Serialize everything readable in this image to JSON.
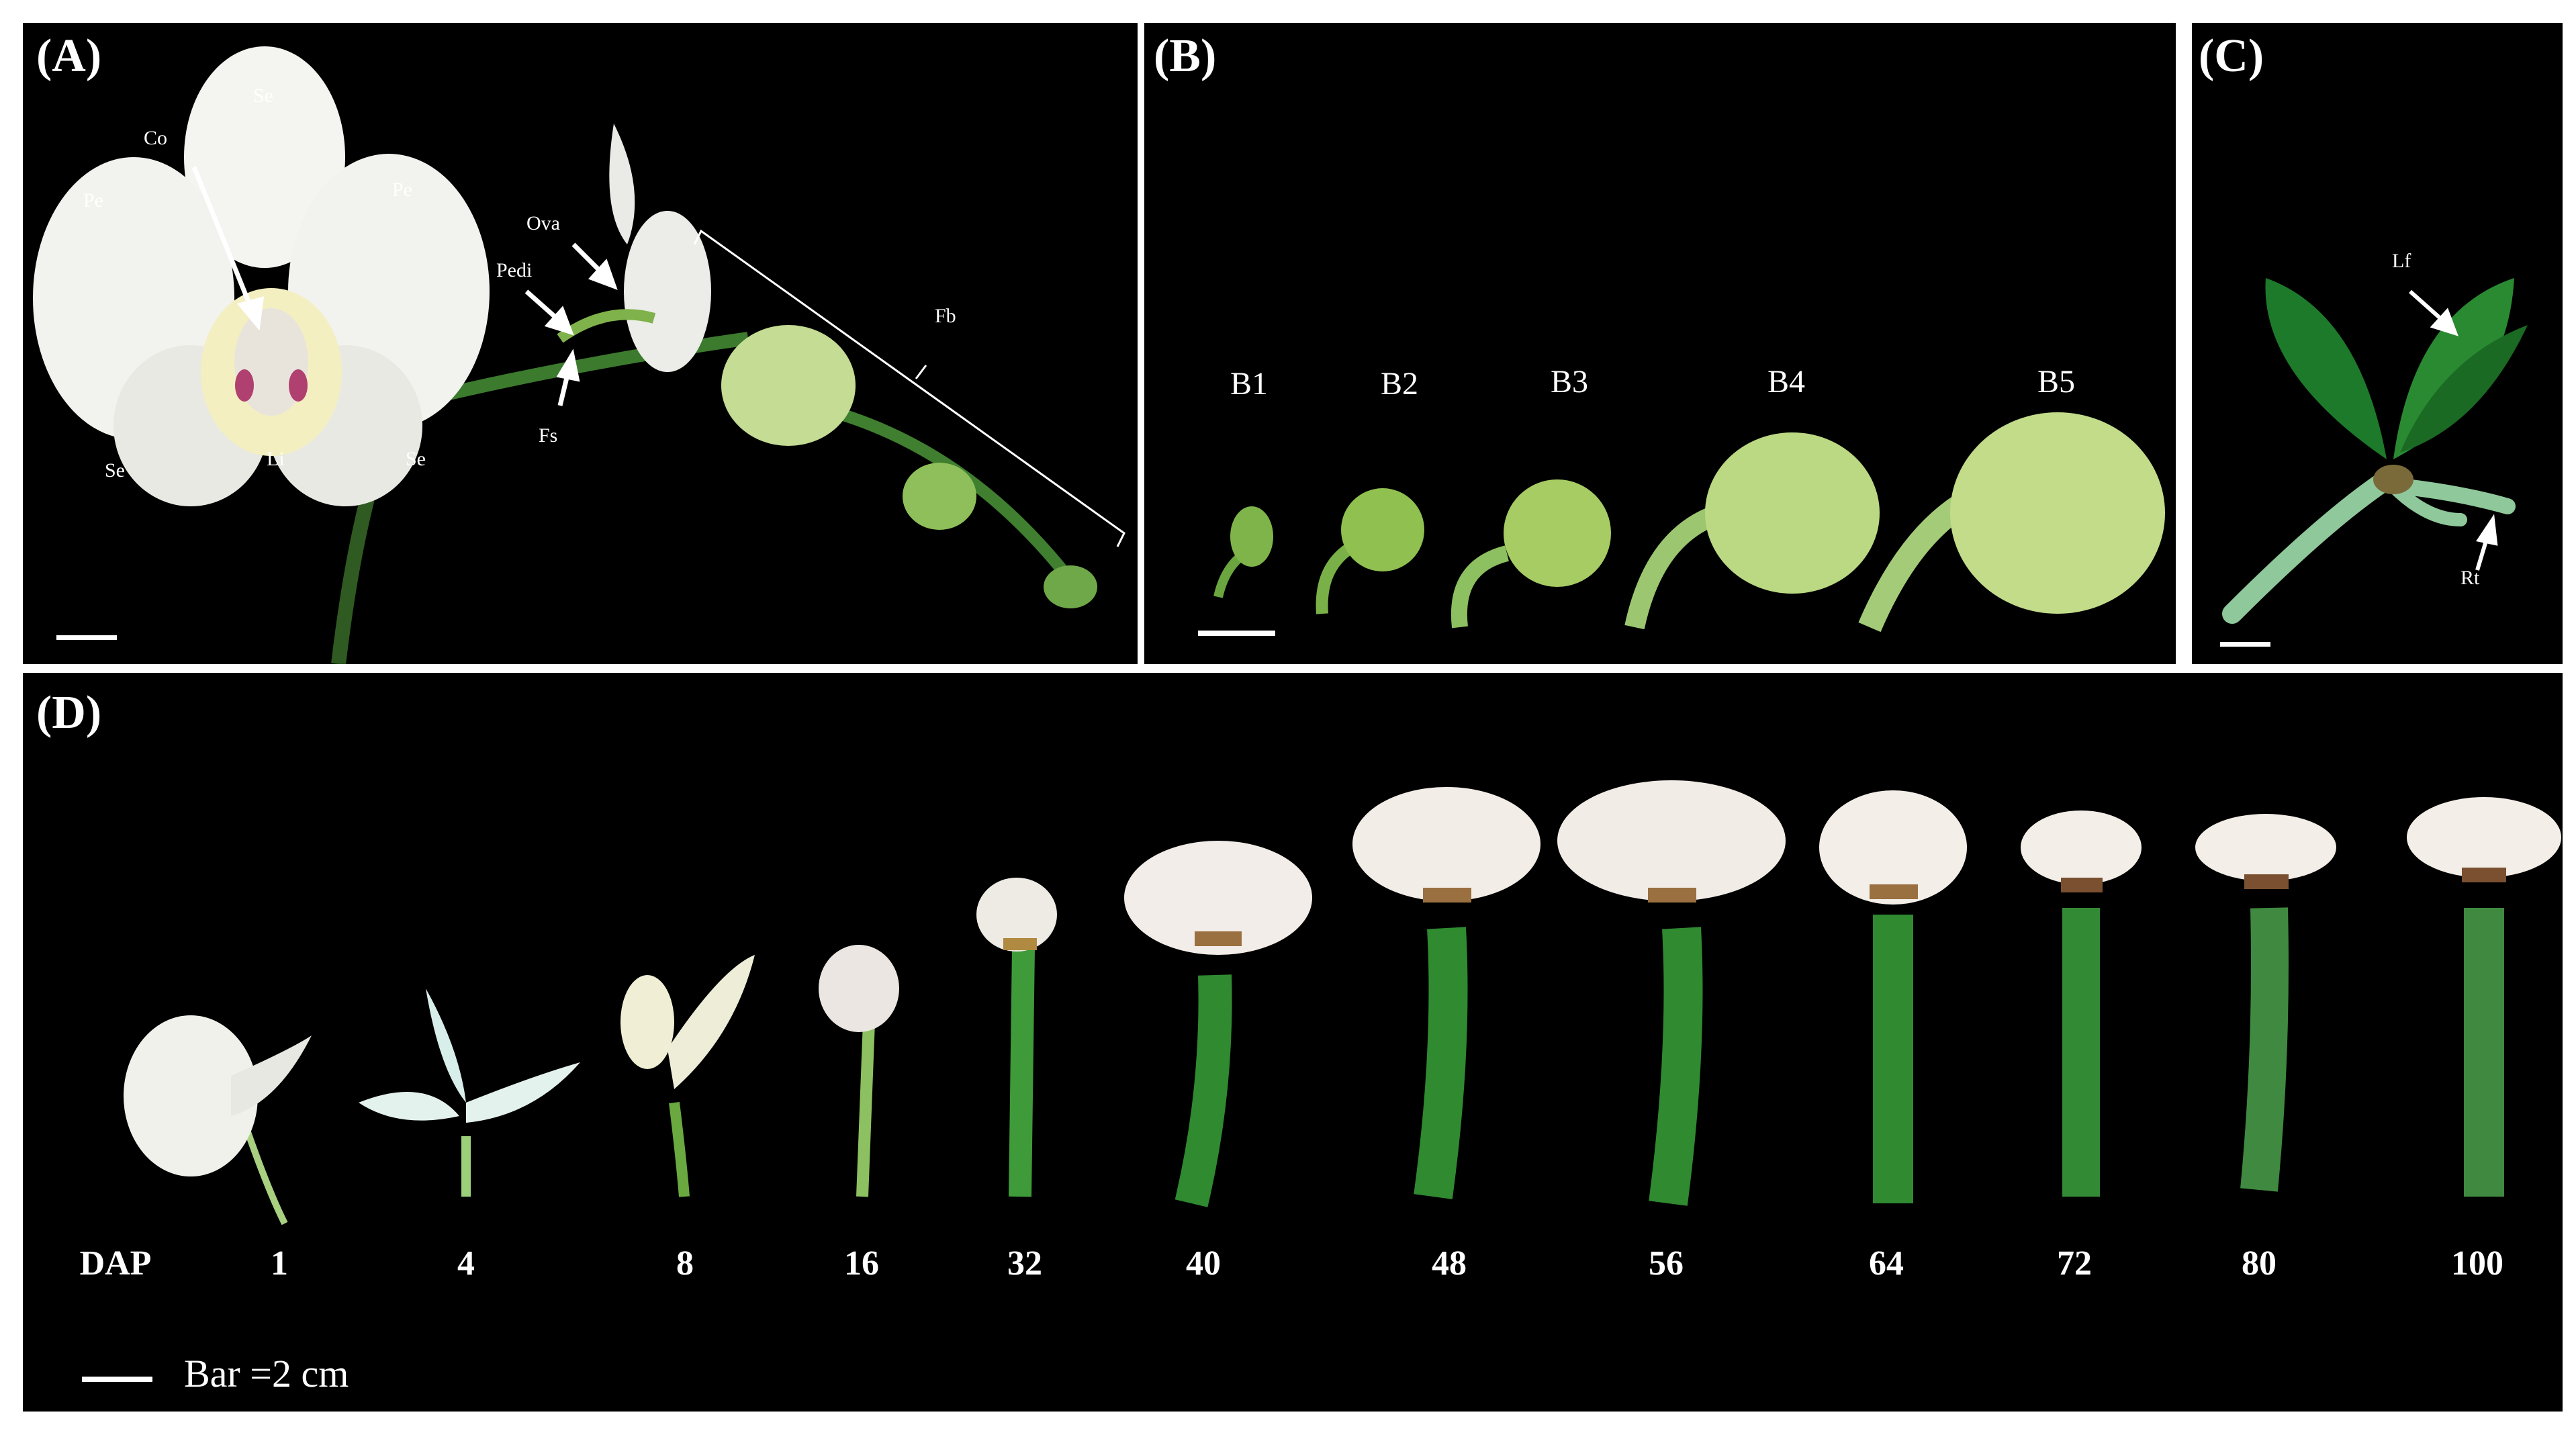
{
  "panels": {
    "a": {
      "label": "(A)",
      "parts": {
        "se_top": "Se",
        "se_left": "Se",
        "se_right": "Se",
        "pe_left": "Pe",
        "pe_right": "Pe",
        "co": "Co",
        "li": "Li",
        "ova": "Ova",
        "pedi": "Pedi",
        "fs": "Fs",
        "fb": "Fb"
      }
    },
    "b": {
      "label": "(B)",
      "stages": [
        "B1",
        "B2",
        "B3",
        "B4",
        "B5"
      ]
    },
    "c": {
      "label": "(C)",
      "parts": {
        "lf": "Lf",
        "rt": "Rt"
      }
    },
    "d": {
      "label": "(D)",
      "axis_label": "DAP",
      "days": [
        "1",
        "4",
        "8",
        "16",
        "32",
        "40",
        "48",
        "56",
        "64",
        "72",
        "80",
        "100"
      ],
      "scale_text": "Bar =2 cm"
    }
  },
  "colors": {
    "background": "#000000",
    "petal": "#f4f4f0",
    "bud": "#b8d88a",
    "stem": "#5f9a3c",
    "capsule": "#3f8a35",
    "leaf": "#1f7a2a",
    "root": "#8fc89a"
  }
}
